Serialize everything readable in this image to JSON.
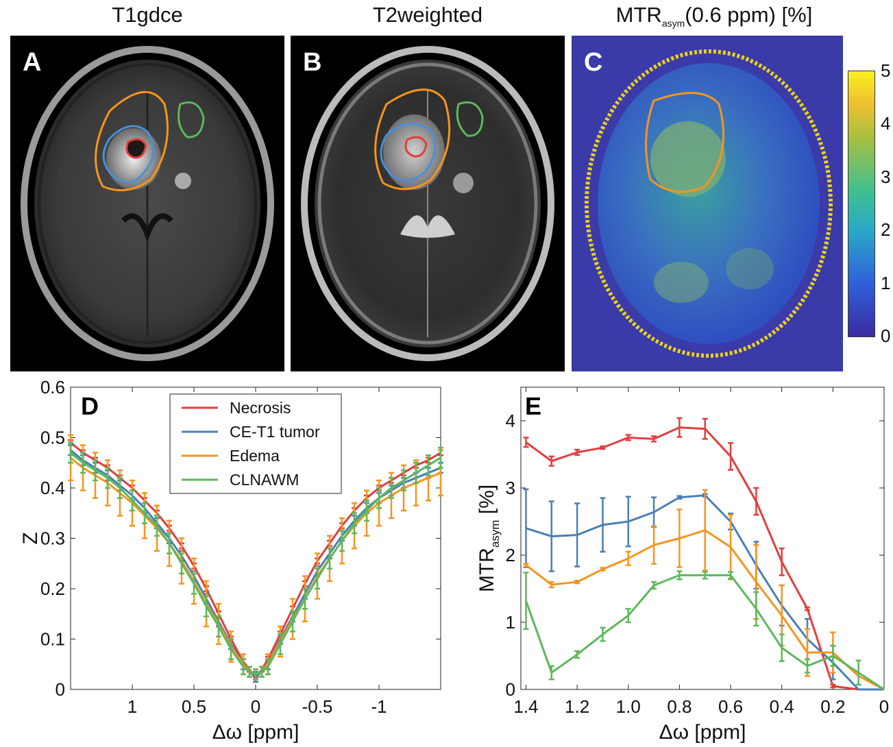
{
  "panels": {
    "A": {
      "letter": "A",
      "title": "T1gdce"
    },
    "B": {
      "letter": "B",
      "title": "T2weighted"
    },
    "C": {
      "letter": "C",
      "title_main": "MTR",
      "title_sub": "asym",
      "title_rest": "(0.6 ppm)  [%]"
    }
  },
  "colorbar": {
    "ticks": [
      "5",
      "4",
      "3",
      "2",
      "1",
      "0"
    ],
    "range": [
      0,
      5
    ]
  },
  "colors": {
    "necrosis": "#e63c3c",
    "ce_t1_tumor": "#4a7fb5",
    "edema": "#f7941d",
    "clnawm": "#5cb85c"
  },
  "chart_data": [
    {
      "id": "D",
      "letter": "D",
      "type": "line",
      "title": "",
      "xlabel": "Δω [ppm]",
      "ylabel": "Z",
      "xlim": [
        1.5,
        -1.5
      ],
      "ylim": [
        0,
        0.6
      ],
      "xticks": [
        1,
        0.5,
        0,
        -0.5,
        -1
      ],
      "xtick_labels": [
        "1",
        "0.5",
        "0",
        "-0.5",
        "-1"
      ],
      "yticks": [
        0,
        0.1,
        0.2,
        0.3,
        0.4,
        0.5,
        0.6
      ],
      "ytick_labels": [
        "0",
        "0.1",
        "0.2",
        "0.3",
        "0.4",
        "0.5",
        "0.6"
      ],
      "legend": [
        "Necrosis",
        "CE-T1 tumor",
        "Edema",
        "CLNAWM"
      ],
      "legend_position": "top-center",
      "x": [
        1.5,
        1.4,
        1.3,
        1.2,
        1.1,
        1.0,
        0.9,
        0.8,
        0.7,
        0.6,
        0.5,
        0.4,
        0.3,
        0.2,
        0.1,
        0.05,
        0,
        -0.05,
        -0.1,
        -0.2,
        -0.3,
        -0.4,
        -0.5,
        -0.6,
        -0.7,
        -0.8,
        -0.9,
        -1.0,
        -1.1,
        -1.2,
        -1.3,
        -1.4,
        -1.5
      ],
      "series": [
        {
          "name": "Necrosis",
          "color": "#e63c3c",
          "values": [
            0.49,
            0.47,
            0.455,
            0.44,
            0.42,
            0.4,
            0.375,
            0.35,
            0.32,
            0.285,
            0.245,
            0.2,
            0.15,
            0.1,
            0.055,
            0.04,
            0.02,
            0.04,
            0.06,
            0.11,
            0.16,
            0.21,
            0.255,
            0.29,
            0.325,
            0.355,
            0.38,
            0.4,
            0.415,
            0.43,
            0.445,
            0.455,
            0.47
          ],
          "errors": [
            0.005,
            0.005,
            0.005,
            0.005,
            0.005,
            0.005,
            0.005,
            0.005,
            0.005,
            0.005,
            0.005,
            0.005,
            0.005,
            0.005,
            0.005,
            0.005,
            0.005,
            0.005,
            0.005,
            0.005,
            0.005,
            0.005,
            0.005,
            0.005,
            0.005,
            0.005,
            0.005,
            0.005,
            0.005,
            0.005,
            0.005,
            0.005,
            0.005
          ]
        },
        {
          "name": "CE-T1 tumor",
          "color": "#4a7fb5",
          "values": [
            0.475,
            0.455,
            0.44,
            0.425,
            0.405,
            0.385,
            0.36,
            0.33,
            0.3,
            0.265,
            0.225,
            0.18,
            0.135,
            0.09,
            0.05,
            0.035,
            0.025,
            0.035,
            0.05,
            0.1,
            0.145,
            0.19,
            0.235,
            0.27,
            0.305,
            0.335,
            0.36,
            0.38,
            0.395,
            0.41,
            0.42,
            0.43,
            0.44
          ],
          "errors": [
            0.01,
            0.01,
            0.01,
            0.01,
            0.01,
            0.01,
            0.01,
            0.01,
            0.01,
            0.01,
            0.01,
            0.01,
            0.01,
            0.01,
            0.01,
            0.01,
            0.01,
            0.01,
            0.01,
            0.01,
            0.01,
            0.01,
            0.01,
            0.01,
            0.01,
            0.01,
            0.01,
            0.01,
            0.01,
            0.01,
            0.01,
            0.01,
            0.01
          ]
        },
        {
          "name": "Edema",
          "color": "#f7941d",
          "values": [
            0.46,
            0.44,
            0.425,
            0.41,
            0.39,
            0.37,
            0.345,
            0.32,
            0.29,
            0.255,
            0.215,
            0.17,
            0.13,
            0.085,
            0.05,
            0.035,
            0.03,
            0.035,
            0.05,
            0.095,
            0.14,
            0.18,
            0.225,
            0.26,
            0.295,
            0.325,
            0.35,
            0.37,
            0.385,
            0.4,
            0.41,
            0.42,
            0.43
          ],
          "errors": [
            0.045,
            0.045,
            0.045,
            0.045,
            0.045,
            0.045,
            0.045,
            0.045,
            0.045,
            0.045,
            0.045,
            0.045,
            0.04,
            0.03,
            0.02,
            0.01,
            0.01,
            0.01,
            0.02,
            0.03,
            0.04,
            0.045,
            0.045,
            0.045,
            0.045,
            0.045,
            0.045,
            0.045,
            0.045,
            0.045,
            0.045,
            0.045,
            0.045
          ]
        },
        {
          "name": "CLNAWM",
          "color": "#5cb85c",
          "values": [
            0.47,
            0.45,
            0.435,
            0.42,
            0.4,
            0.375,
            0.35,
            0.325,
            0.29,
            0.25,
            0.21,
            0.165,
            0.125,
            0.08,
            0.045,
            0.035,
            0.03,
            0.035,
            0.045,
            0.09,
            0.135,
            0.18,
            0.22,
            0.26,
            0.295,
            0.33,
            0.355,
            0.38,
            0.4,
            0.415,
            0.43,
            0.445,
            0.46
          ],
          "errors": [
            0.02,
            0.02,
            0.02,
            0.02,
            0.02,
            0.02,
            0.02,
            0.02,
            0.02,
            0.02,
            0.02,
            0.02,
            0.02,
            0.02,
            0.015,
            0.01,
            0.01,
            0.01,
            0.015,
            0.02,
            0.02,
            0.02,
            0.02,
            0.02,
            0.02,
            0.02,
            0.02,
            0.02,
            0.02,
            0.02,
            0.02,
            0.02,
            0.02
          ]
        }
      ]
    },
    {
      "id": "E",
      "letter": "E",
      "type": "line",
      "title": "",
      "xlabel": "Δω [ppm]",
      "ylabel_main": "MTR",
      "ylabel_sub": "asym",
      "ylabel_rest": " [%]",
      "xlim": [
        1.42,
        0
      ],
      "ylim": [
        0,
        4.5
      ],
      "xticks": [
        1.4,
        1.2,
        1.0,
        0.8,
        0.6,
        0.4,
        0.2,
        0
      ],
      "xtick_labels": [
        "1.4",
        "1.2",
        "1.0",
        "0.8",
        "0.6",
        "0.4",
        "0.2",
        "0"
      ],
      "yticks": [
        0,
        1,
        2,
        3,
        4
      ],
      "ytick_labels": [
        "0",
        "1",
        "2",
        "3",
        "4"
      ],
      "x": [
        1.4,
        1.3,
        1.2,
        1.1,
        1.0,
        0.9,
        0.8,
        0.7,
        0.6,
        0.5,
        0.4,
        0.3,
        0.2,
        0.1,
        0
      ],
      "series": [
        {
          "name": "Necrosis",
          "color": "#e63c3c",
          "values": [
            3.68,
            3.4,
            3.53,
            3.6,
            3.75,
            3.73,
            3.9,
            3.88,
            3.47,
            2.8,
            1.9,
            1.2,
            0.05,
            -0.05,
            0
          ],
          "errors": [
            0.07,
            0.07,
            0.04,
            0.02,
            0.04,
            0.04,
            0.14,
            0.15,
            0.2,
            0.2,
            0.2,
            0.02,
            0.02,
            0,
            0
          ]
        },
        {
          "name": "CE-T1 tumor",
          "color": "#4a7fb5",
          "values": [
            2.4,
            2.28,
            2.3,
            2.45,
            2.5,
            2.64,
            2.86,
            2.89,
            2.5,
            1.85,
            1.25,
            0.75,
            0.4,
            -0.05,
            0
          ],
          "errors": [
            0.58,
            0.52,
            0.47,
            0.4,
            0.37,
            0.22,
            0.02,
            0.02,
            0.12,
            0.35,
            0.3,
            0.3,
            0.25,
            0,
            0
          ]
        },
        {
          "name": "Edema",
          "color": "#f7941d",
          "values": [
            1.85,
            1.56,
            1.6,
            1.79,
            1.95,
            2.15,
            2.25,
            2.37,
            2.12,
            1.6,
            1.1,
            0.55,
            0.55,
            0.2,
            0
          ],
          "errors": [
            0.02,
            0.04,
            0.02,
            0.02,
            0.1,
            0.28,
            0.43,
            0.6,
            0.48,
            0.55,
            0.45,
            0.35,
            0.3,
            0,
            0
          ]
        },
        {
          "name": "CLNAWM",
          "color": "#5cb85c",
          "values": [
            1.32,
            0.25,
            0.52,
            0.82,
            1.1,
            1.55,
            1.7,
            1.7,
            1.7,
            1.2,
            0.62,
            0.35,
            0.5,
            0.25,
            0
          ],
          "errors": [
            0.42,
            0.1,
            0.05,
            0.1,
            0.1,
            0.05,
            0.06,
            0.05,
            0.05,
            0.25,
            0.2,
            0.1,
            0.15,
            0.18,
            0
          ]
        }
      ]
    }
  ]
}
